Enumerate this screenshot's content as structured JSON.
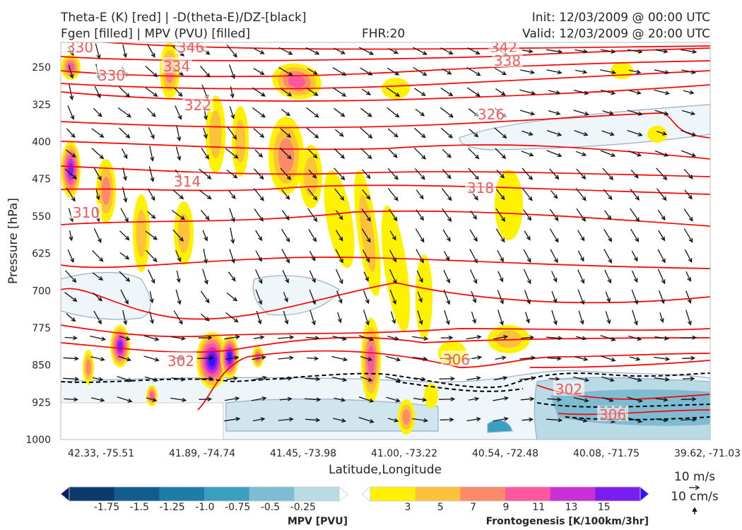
{
  "header": {
    "title_left_1": "Theta-E (K) [red] | -D(theta-E)/DZ-[black]",
    "title_left_2": "Fgen [filled] | MPV (PVU) [filled]",
    "fhr": "FHR:20",
    "init": "Init: 12/03/2009 @ 00:00 UTC",
    "valid": "Valid: 12/03/2009 @ 20:00 UTC"
  },
  "chart_data": {
    "type": "cross-section",
    "xlabel": "Latitude,Longitude",
    "ylabel": "Pressure [hPa]",
    "ylim": [
      1000,
      200
    ],
    "y_ticks": [
      250,
      325,
      400,
      475,
      550,
      625,
      700,
      775,
      850,
      925,
      1000
    ],
    "x_ticks": [
      "42.33, -75.51",
      "41.89, -74.74",
      "41.45, -73.98",
      "41.00, -73.22",
      "40.54, -72.48",
      "40.08, -71.75",
      "39.62, -71.03"
    ],
    "theta_e_contour_labels": [
      "330",
      "346",
      "342",
      "338",
      "330",
      "334",
      "322",
      "326",
      "314",
      "318",
      "310",
      "302",
      "306",
      "302",
      "306"
    ],
    "colors": {
      "theta_e": "#ff0000",
      "dthetae_dz": "#000000",
      "mpv_outline": "#9aaecc"
    },
    "mpv_colorbar": {
      "label": "MPV [PVU]",
      "ticks": [
        "-1.75",
        "-1.5",
        "-1.25",
        "-1.0",
        "-0.75",
        "-0.5",
        "-0.25"
      ],
      "colors": [
        "#08205a",
        "#0b3a6e",
        "#115d8d",
        "#1c7ea6",
        "#3b9fc1",
        "#7cbdd3",
        "#b9dbe6",
        "#ffffff"
      ]
    },
    "fgen_colorbar": {
      "label": "Frontogenesis [K/100km/3hr]",
      "ticks": [
        "3",
        "5",
        "7",
        "9",
        "11",
        "13",
        "15"
      ],
      "colors": [
        "#ffffff",
        "#fff200",
        "#fdc23c",
        "#fb8a6b",
        "#fb58a0",
        "#c930d6",
        "#7a1ef0",
        "#2a16ff"
      ]
    },
    "wind_key": {
      "horizontal": "10 m/s",
      "vertical": "10 cm/s"
    }
  }
}
